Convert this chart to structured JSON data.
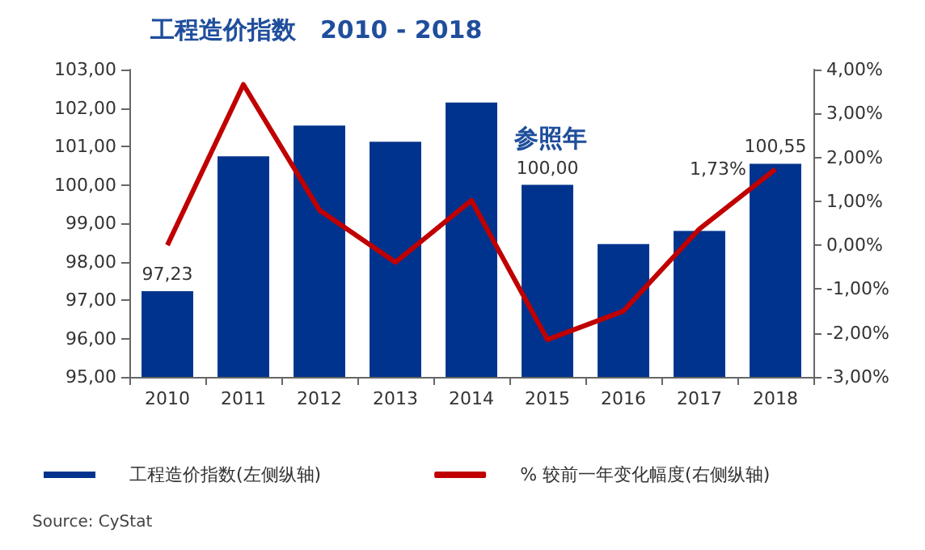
{
  "chart_data": {
    "type": "bar",
    "title": "工程造价指数　2010 - 2018",
    "categories": [
      "2010",
      "2011",
      "2012",
      "2013",
      "2014",
      "2015",
      "2016",
      "2017",
      "2018"
    ],
    "series": [
      {
        "name": "工程造价指数(左侧纵轴)",
        "color": "#00338d",
        "values": [
          97.23,
          100.74,
          101.54,
          101.12,
          102.14,
          100.0,
          98.46,
          98.8,
          100.55
        ],
        "value_labels": [
          "97,23",
          null,
          null,
          null,
          null,
          "100,00",
          null,
          null,
          "100,55"
        ]
      },
      {
        "name": "% 较前一年变化幅度(右侧纵轴)",
        "type": "line",
        "axis": "y2",
        "color": "#c00000",
        "values": [
          0.0,
          3.66,
          0.8,
          -0.39,
          1.02,
          -2.15,
          -1.5,
          0.37,
          1.73
        ],
        "value_labels": [
          null,
          null,
          null,
          null,
          null,
          null,
          null,
          null,
          "1,73%"
        ]
      }
    ],
    "ylim": [
      95,
      103
    ],
    "yticks": [
      {
        "value": 95,
        "label": "95,00"
      },
      {
        "value": 96,
        "label": "96,00"
      },
      {
        "value": 97,
        "label": "97,00"
      },
      {
        "value": 98,
        "label": "98,00"
      },
      {
        "value": 99,
        "label": "99,00"
      },
      {
        "value": 100,
        "label": "100,00"
      },
      {
        "value": 101,
        "label": "101,00"
      },
      {
        "value": 102,
        "label": "102,00"
      },
      {
        "value": 103,
        "label": "103,00"
      }
    ],
    "y2lim": [
      -3,
      4
    ],
    "y2ticks": [
      {
        "value": -3,
        "label": "-3,00%"
      },
      {
        "value": -2,
        "label": "-2,00%"
      },
      {
        "value": -1,
        "label": "-1,00%"
      },
      {
        "value": 0,
        "label": "0,00%"
      },
      {
        "value": 1,
        "label": "1,00%"
      },
      {
        "value": 2,
        "label": "2,00%"
      },
      {
        "value": 3,
        "label": "3,00%"
      },
      {
        "value": 4,
        "label": "4,00%"
      }
    ],
    "annotations": [
      "参照年",
      "Source: CyStat"
    ],
    "legend": "bottom",
    "grid": false,
    "marker": "none",
    "line_style": "solid"
  }
}
